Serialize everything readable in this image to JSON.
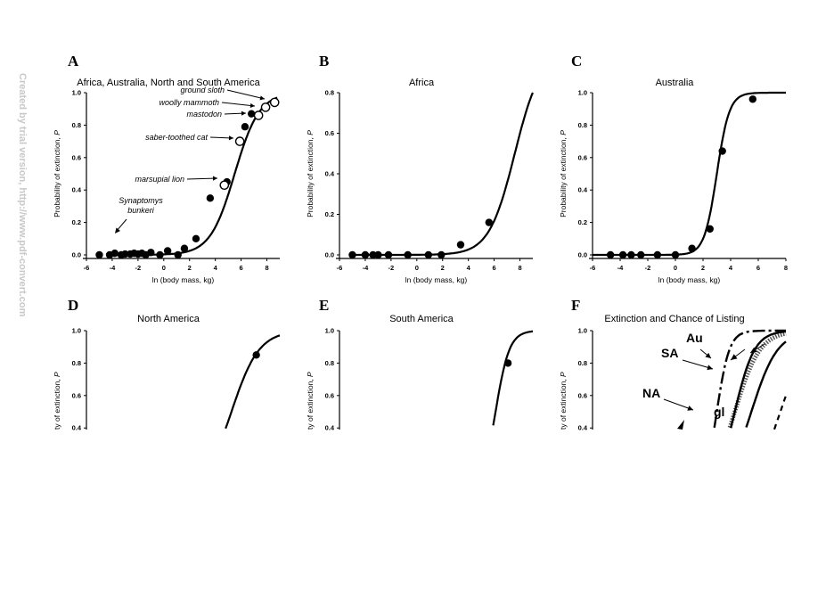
{
  "watermark": "Created by trial version, http://www.pdf-convert.com",
  "chart_data": [
    {
      "id": "A",
      "type": "line",
      "panel_label": "A",
      "title": "Africa, Australia, North and South America",
      "xlabel": "ln (body mass, kg)",
      "ylabel": "Probability of extinction, P",
      "xlim": [
        -6,
        9
      ],
      "ylim": [
        0,
        1.0
      ],
      "xticks": [
        -6,
        -4,
        -2,
        0,
        2,
        4,
        6,
        8
      ],
      "yticks": [
        0.0,
        0.2,
        0.4,
        0.6,
        0.8,
        1.0
      ],
      "xtick_labels": [
        "-6",
        "-4",
        "-2",
        "0",
        "2",
        "4",
        "6",
        "8"
      ],
      "ytick_labels": [
        "0.0",
        "0.2",
        "0.4",
        "0.6",
        "0.8",
        "1.0"
      ],
      "curve": {
        "midpoint": 5.5,
        "slope": 1.05,
        "x_range": [
          -4.2,
          8.8
        ]
      },
      "points": [
        [
          -5,
          0.0
        ],
        [
          -4.2,
          0.0
        ],
        [
          -3.8,
          0.01
        ],
        [
          -3.3,
          0.0
        ],
        [
          -3.0,
          0.005
        ],
        [
          -2.6,
          0.005
        ],
        [
          -2.3,
          0.01
        ],
        [
          -2.0,
          0.005
        ],
        [
          -1.7,
          0.01
        ],
        [
          -1.4,
          0.0
        ],
        [
          -1.0,
          0.015
        ],
        [
          -0.3,
          0.0
        ],
        [
          0.3,
          0.025
        ],
        [
          1.1,
          0.0
        ],
        [
          1.6,
          0.04
        ],
        [
          2.5,
          0.1
        ],
        [
          3.6,
          0.35
        ],
        [
          4.9,
          0.45
        ],
        [
          6.3,
          0.79
        ],
        [
          6.8,
          0.87
        ]
      ],
      "open_points": [
        [
          4.7,
          0.43
        ],
        [
          5.9,
          0.7
        ],
        [
          7.35,
          0.86
        ],
        [
          7.9,
          0.91
        ],
        [
          8.6,
          0.94
        ]
      ],
      "annotations": [
        {
          "text": "ground sloth",
          "x": 8.6,
          "y": 0.94
        },
        {
          "text": "woolly mammoth",
          "x": 7.9,
          "y": 0.91
        },
        {
          "text": "mastodon",
          "x": 7.35,
          "y": 0.86
        },
        {
          "text": "saber-toothed cat",
          "x": 5.9,
          "y": 0.7
        },
        {
          "text": "marsupial lion",
          "x": 4.7,
          "y": 0.43
        },
        {
          "text": "Synaptomys",
          "x": -3.8,
          "y": 0.01
        },
        {
          "text": "bunkeri",
          "x": -3.8,
          "y": 0.01
        }
      ]
    },
    {
      "id": "B",
      "type": "line",
      "panel_label": "B",
      "title": "Africa",
      "xlabel": "ln (body mass, kg)",
      "ylabel": "Probability of extinction, P",
      "xlim": [
        -6,
        9
      ],
      "ylim": [
        0,
        0.8
      ],
      "xticks": [
        -6,
        -4,
        -2,
        0,
        2,
        4,
        6,
        8
      ],
      "yticks": [
        0.0,
        0.2,
        0.4,
        0.6,
        0.8
      ],
      "xtick_labels": [
        "-6",
        "-4",
        "-2",
        "0",
        "2",
        "4",
        "6",
        "8"
      ],
      "ytick_labels": [
        "0.0",
        "0.2",
        "0.4",
        "0.6",
        "0.8"
      ],
      "curve": {
        "midpoint": 7.6,
        "slope": 1.0,
        "x_range": [
          -5,
          9
        ]
      },
      "points": [
        [
          -5,
          0.0
        ],
        [
          -4,
          0.0
        ],
        [
          -3.4,
          0.0
        ],
        [
          -3.0,
          0.0
        ],
        [
          -2.2,
          0.0
        ],
        [
          -0.7,
          0.0
        ],
        [
          0.9,
          0.0
        ],
        [
          1.9,
          0.0
        ],
        [
          3.4,
          0.05
        ],
        [
          5.6,
          0.16
        ]
      ]
    },
    {
      "id": "C",
      "type": "line",
      "panel_label": "C",
      "title": "Australia",
      "xlabel": "ln (body mass, kg)",
      "ylabel": "Probability of extinction, P",
      "xlim": [
        -6,
        8
      ],
      "ylim": [
        0,
        1.0
      ],
      "xticks": [
        -6,
        -4,
        -2,
        0,
        2,
        4,
        6,
        8
      ],
      "yticks": [
        0.0,
        0.2,
        0.4,
        0.6,
        0.8,
        1.0
      ],
      "xtick_labels": [
        "-6",
        "-4",
        "-2",
        "0",
        "2",
        "4",
        "6",
        "8"
      ],
      "ytick_labels": [
        "0.0",
        "0.2",
        "0.4",
        "0.6",
        "0.8",
        "1.0"
      ],
      "curve": {
        "midpoint": 3.0,
        "slope": 2.2,
        "x_range": [
          -6,
          8
        ]
      },
      "points": [
        [
          -4.7,
          0.0
        ],
        [
          -3.8,
          0.0
        ],
        [
          -3.2,
          0.0
        ],
        [
          -2.5,
          0.0
        ],
        [
          -1.3,
          0.0
        ],
        [
          0.0,
          0.0
        ],
        [
          1.2,
          0.04
        ],
        [
          2.5,
          0.16
        ],
        [
          3.4,
          0.64
        ],
        [
          5.6,
          0.96
        ]
      ]
    },
    {
      "id": "D",
      "type": "line",
      "panel_label": "D",
      "title": "North America",
      "ylabel": "Probability of extinction, P",
      "ylabel_visible": "ty of extinction, P",
      "xlim": [
        -6,
        8
      ],
      "ylim": [
        0,
        1.0
      ],
      "visible_ymin": 0.33,
      "yticks": [
        0.4,
        0.6,
        0.8,
        1.0
      ],
      "ytick_labels": [
        "0.4",
        "0.6",
        "0.8",
        "1.0"
      ],
      "curve": {
        "midpoint": 4.5,
        "slope": 1.0,
        "x_range": [
          -6,
          8
        ]
      },
      "points": [
        [
          6.3,
          0.85
        ]
      ]
    },
    {
      "id": "E",
      "type": "line",
      "panel_label": "E",
      "title": "South America",
      "ylabel": "Probability of extinction, P",
      "ylabel_visible": "ty of extinction, P",
      "xlim": [
        -6,
        8
      ],
      "ylim": [
        0,
        1.0
      ],
      "visible_ymin": 0.33,
      "yticks": [
        0.4,
        0.6,
        0.8,
        1.0
      ],
      "ytick_labels": [
        "0.4",
        "0.6",
        "0.8",
        "1.0"
      ],
      "curve": {
        "midpoint": 5.3,
        "slope": 2.0,
        "x_range": [
          -6,
          8
        ]
      },
      "points": [
        [
          6.2,
          0.8
        ]
      ]
    },
    {
      "id": "F",
      "type": "line",
      "panel_label": "F",
      "title": "Extinction and Chance of Listing",
      "ylabel": "Probability of extinction, P",
      "ylabel_visible": "ty of extinction, P",
      "xlim": [
        -6,
        8
      ],
      "ylim": [
        0,
        1.0
      ],
      "visible_ymin": 0.33,
      "yticks": [
        0.4,
        0.6,
        0.8,
        1.0
      ],
      "ytick_labels": [
        "0.4",
        "0.6",
        "0.8",
        "1.0"
      ],
      "series": [
        {
          "name": "Au",
          "midpoint": 3.0,
          "slope": 2.2,
          "style": "dashdot"
        },
        {
          "name": "SA",
          "midpoint": 4.3,
          "slope": 1.1,
          "style": "dotted"
        },
        {
          "name": "NA",
          "midpoint": 4.3,
          "slope": 1.4,
          "style": "solid"
        },
        {
          "name": "gl",
          "midpoint": 5.5,
          "slope": 1.05,
          "style": "solid"
        },
        {
          "midpoint": 7.6,
          "slope": 1.0,
          "style": "dashed"
        }
      ]
    }
  ]
}
